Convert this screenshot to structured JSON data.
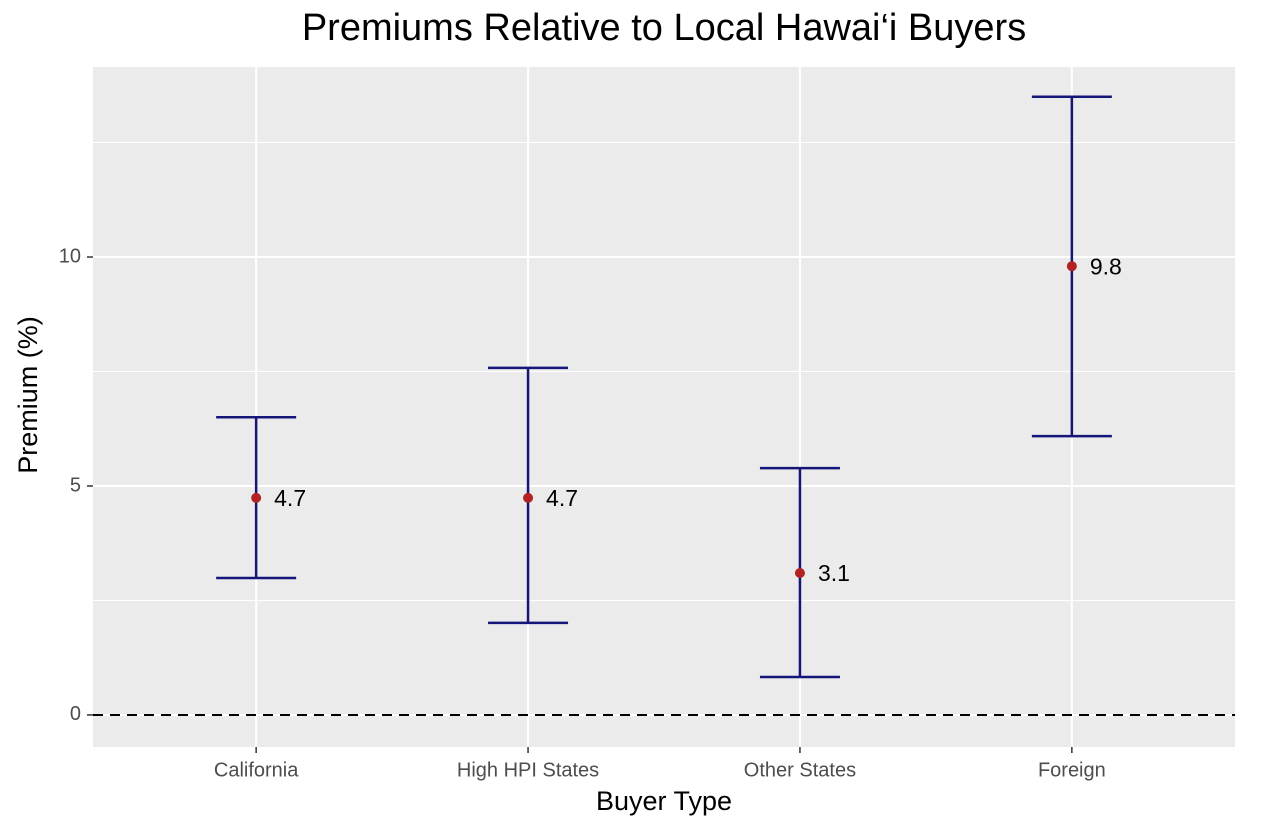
{
  "chart_data": {
    "type": "errorbar",
    "title": "Premiums Relative to Local Hawai‘i Buyers",
    "x_label": "Buyer Type",
    "y_label": "Premium (%)",
    "categories": [
      "California",
      "High HPI States",
      "Other States",
      "Foreign"
    ],
    "values": [
      4.74,
      4.74,
      3.1,
      9.8
    ],
    "value_labels": [
      "4.7",
      "4.7",
      "3.1",
      "9.8"
    ],
    "lower": [
      2.99,
      2.01,
      0.83,
      6.09
    ],
    "upper": [
      6.5,
      7.58,
      5.39,
      13.5
    ],
    "point_color": "#b22222",
    "bar_color": "#15157a",
    "hline": 0,
    "ylim": [
      -0.7,
      14.15
    ],
    "yticks": [
      0,
      5,
      10
    ],
    "yminor": [
      2.5,
      7.5,
      12.5
    ],
    "grid": true
  }
}
